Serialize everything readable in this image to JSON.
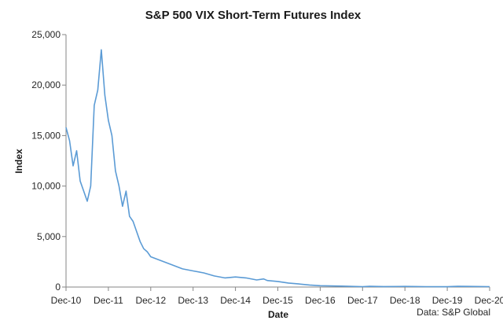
{
  "chart_data": {
    "type": "line",
    "title": "S&P 500 VIX Short-Term Futures Index",
    "xlabel": "Date",
    "ylabel": "Index",
    "source_note": "Data: S&P Global",
    "ylim": [
      0,
      25000
    ],
    "y_ticks": [
      0,
      5000,
      10000,
      15000,
      20000,
      25000
    ],
    "y_tick_labels": [
      "0",
      "5,000",
      "10,000",
      "15,000",
      "20,000",
      "25,000"
    ],
    "x_ticks": [
      "2010-12",
      "2011-12",
      "2012-12",
      "2013-12",
      "2014-12",
      "2015-12",
      "2016-12",
      "2017-12",
      "2018-12",
      "2019-12",
      "2020-12"
    ],
    "x_tick_labels": [
      "Dec-10",
      "Dec-11",
      "Dec-12",
      "Dec-13",
      "Dec-14",
      "Dec-15",
      "Dec-16",
      "Dec-17",
      "Dec-18",
      "Dec-19",
      "Dec-20"
    ],
    "grid": false,
    "legend": "none",
    "line_color": "#5b9bd5",
    "series": [
      {
        "x": [
          "2010-12",
          "2011-01",
          "2011-02",
          "2011-03",
          "2011-04",
          "2011-05",
          "2011-06",
          "2011-07",
          "2011-08",
          "2011-09",
          "2011-10",
          "2011-11",
          "2011-12",
          "2012-01",
          "2012-02",
          "2012-03",
          "2012-04",
          "2012-05",
          "2012-06",
          "2012-07",
          "2012-08",
          "2012-09",
          "2012-10",
          "2012-11",
          "2012-12",
          "2013-03",
          "2013-06",
          "2013-09",
          "2013-12",
          "2014-03",
          "2014-06",
          "2014-09",
          "2014-12",
          "2015-03",
          "2015-06",
          "2015-08",
          "2015-09",
          "2015-12",
          "2016-03",
          "2016-06",
          "2016-09",
          "2016-12",
          "2017-06",
          "2017-12",
          "2018-02",
          "2018-06",
          "2018-12",
          "2019-06",
          "2019-12",
          "2020-03",
          "2020-06",
          "2020-12"
        ],
        "y": [
          15800,
          14500,
          12000,
          13500,
          10500,
          9500,
          8500,
          10000,
          18000,
          19500,
          23500,
          19000,
          16500,
          15000,
          11500,
          10000,
          8000,
          9500,
          7000,
          6500,
          5500,
          4500,
          3800,
          3500,
          3000,
          2600,
          2200,
          1800,
          1600,
          1400,
          1100,
          900,
          1000,
          900,
          700,
          800,
          650,
          550,
          400,
          300,
          200,
          130,
          90,
          40,
          70,
          50,
          60,
          40,
          30,
          70,
          60,
          40
        ]
      }
    ]
  }
}
